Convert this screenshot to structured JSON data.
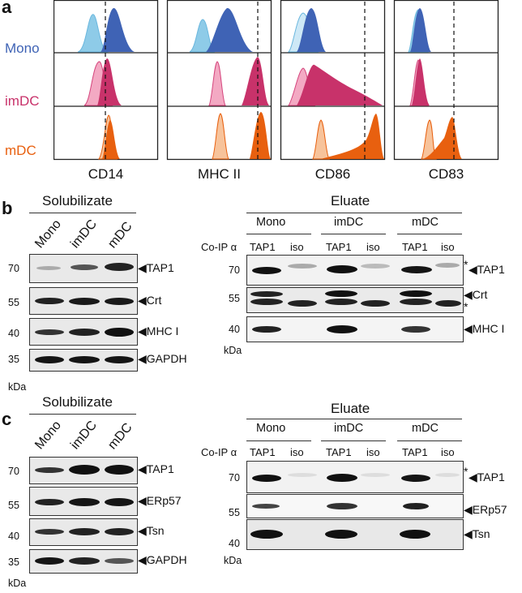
{
  "panel_a": {
    "letter": "a",
    "rows": [
      {
        "label": "Mono",
        "color": "#3f63b5"
      },
      {
        "label": "imDC",
        "color": "#c8326a"
      },
      {
        "label": "mDC",
        "color": "#e8600f"
      }
    ],
    "markers": [
      "CD14",
      "MHC II",
      "CD86",
      "CD83"
    ]
  },
  "panel_b": {
    "letter": "b",
    "solubilizate_title": "Solubilizate",
    "eluate_title": "Eluate",
    "lanes": [
      "Mono",
      "imDC",
      "mDC"
    ],
    "coip_label": "Co-IP α",
    "coip_cols": [
      "TAP1",
      "iso",
      "TAP1",
      "iso",
      "TAP1",
      "iso"
    ],
    "left_mw": [
      "70",
      "55",
      "40",
      "35"
    ],
    "left_bands": [
      "TAP1",
      "Crt",
      "MHC I",
      "GAPDH"
    ],
    "right_mw": [
      "70",
      "55",
      "40"
    ],
    "right_bands": [
      "TAP1",
      "Crt",
      "MHC I"
    ],
    "asterisk": "*",
    "kda": "kDa"
  },
  "panel_c": {
    "letter": "c",
    "solubilizate_title": "Solubilizate",
    "eluate_title": "Eluate",
    "lanes": [
      "Mono",
      "imDC",
      "mDC"
    ],
    "coip_label": "Co-IP α",
    "coip_cols": [
      "TAP1",
      "iso",
      "TAP1",
      "iso",
      "TAP1",
      "iso"
    ],
    "left_mw": [
      "70",
      "55",
      "40",
      "35"
    ],
    "left_bands": [
      "TAP1",
      "ERp57",
      "Tsn",
      "GAPDH"
    ],
    "right_mw": [
      "70",
      "55",
      "40"
    ],
    "right_bands": [
      "TAP1",
      "ERp57",
      "Tsn"
    ],
    "asterisk": "*",
    "kda": "kDa"
  }
}
